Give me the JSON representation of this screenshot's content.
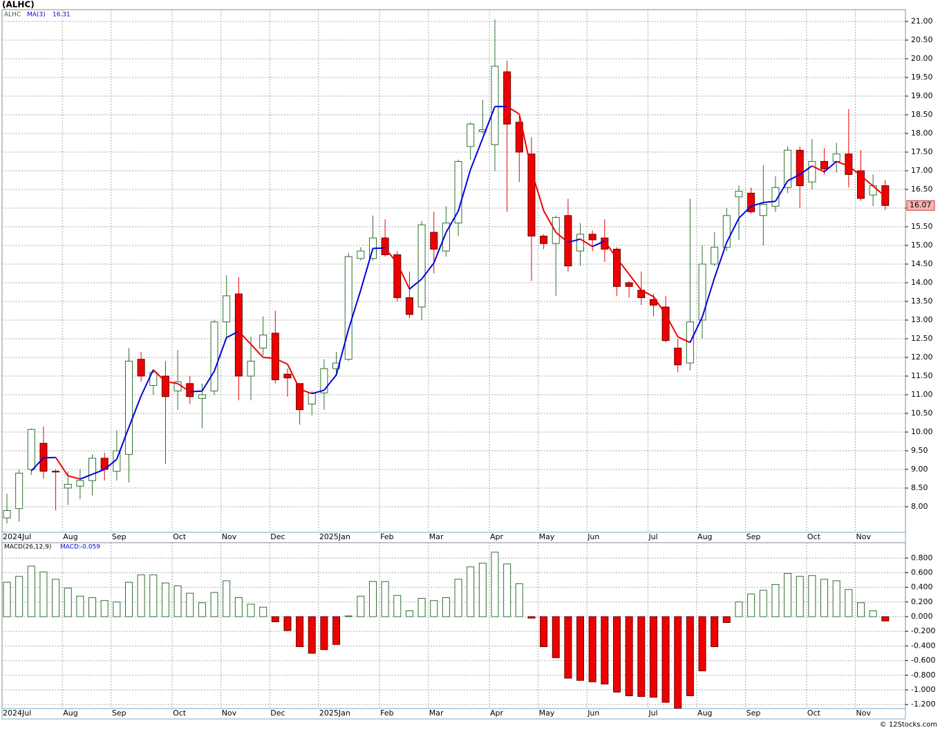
{
  "chart_data": [
    {
      "type": "candlestick",
      "title": "(ALHC)",
      "symbol": "ALHC",
      "categories": [
        "2024Jul",
        null,
        null,
        null,
        null,
        "Aug",
        null,
        null,
        null,
        "Sep",
        null,
        null,
        null,
        null,
        "Oct",
        null,
        null,
        null,
        "Nov",
        null,
        null,
        null,
        "Dec",
        null,
        null,
        null,
        "2025Jan",
        null,
        null,
        null,
        null,
        "Feb",
        null,
        null,
        null,
        "Mar",
        null,
        null,
        null,
        null,
        "Apr",
        null,
        null,
        null,
        "May",
        null,
        null,
        null,
        "Jun",
        null,
        null,
        null,
        null,
        "Jul",
        null,
        null,
        null,
        "Aug",
        null,
        null,
        null,
        "Sep",
        null,
        null,
        null,
        null,
        "Oct",
        null,
        null,
        null,
        "Nov",
        null,
        null
      ],
      "open": [
        7.7,
        7.95,
        9.0,
        9.7,
        8.95,
        8.5,
        8.55,
        8.7,
        9.3,
        8.95,
        9.4,
        11.95,
        11.25,
        11.5,
        11.1,
        11.3,
        10.9,
        11.1,
        12.95,
        13.7,
        11.5,
        12.25,
        12.65,
        11.55,
        11.3,
        10.75,
        11.05,
        11.7,
        11.95,
        14.65,
        14.65,
        15.2,
        14.75,
        13.6,
        13.35,
        15.35,
        14.85,
        15.6,
        17.65,
        18.05,
        17.7,
        19.65,
        18.3,
        17.45,
        15.25,
        15.05,
        15.8,
        14.85,
        15.3,
        15.2,
        14.9,
        14.0,
        13.8,
        13.55,
        13.35,
        12.25,
        11.85,
        13.0,
        14.5,
        14.95,
        16.3,
        16.4,
        15.8,
        16.05,
        16.55,
        17.55,
        16.7,
        17.25,
        17.25,
        17.45,
        17.0,
        16.35,
        16.6
      ],
      "high": [
        8.35,
        9.0,
        10.1,
        10.15,
        9.0,
        8.95,
        9.0,
        9.4,
        9.45,
        10.05,
        12.25,
        12.15,
        11.65,
        11.9,
        12.2,
        11.5,
        11.3,
        13.0,
        14.2,
        14.15,
        12.55,
        13.1,
        13.25,
        11.7,
        11.3,
        11.1,
        11.95,
        12.15,
        14.8,
        14.95,
        15.8,
        15.7,
        14.85,
        14.3,
        15.65,
        15.9,
        16.05,
        17.3,
        18.3,
        18.9,
        21.05,
        19.95,
        18.45,
        17.9,
        15.3,
        15.8,
        16.25,
        15.6,
        15.4,
        15.7,
        14.95,
        14.05,
        14.3,
        13.7,
        13.65,
        12.5,
        16.25,
        15.0,
        15.35,
        16.0,
        16.6,
        16.55,
        17.15,
        16.85,
        17.65,
        17.65,
        17.85,
        17.6,
        17.75,
        18.65,
        17.55,
        16.9,
        16.75
      ],
      "low": [
        7.55,
        7.6,
        8.85,
        8.75,
        7.9,
        8.05,
        8.2,
        8.3,
        8.7,
        8.7,
        8.65,
        11.35,
        11.0,
        9.15,
        10.6,
        10.75,
        10.1,
        11.0,
        12.5,
        10.85,
        10.85,
        12.05,
        11.3,
        10.95,
        10.2,
        10.45,
        10.6,
        11.5,
        11.9,
        14.6,
        14.6,
        14.7,
        13.5,
        13.05,
        13.0,
        14.25,
        14.7,
        15.25,
        17.3,
        18.0,
        17.0,
        15.9,
        16.7,
        14.05,
        14.9,
        13.65,
        14.3,
        14.45,
        14.85,
        14.55,
        13.65,
        13.6,
        13.4,
        13.1,
        12.4,
        11.6,
        11.65,
        12.5,
        14.45,
        14.85,
        15.15,
        15.85,
        15.0,
        15.9,
        16.4,
        16.0,
        16.5,
        16.9,
        16.95,
        16.55,
        16.2,
        16.05,
        15.95
      ],
      "close": [
        7.9,
        8.9,
        10.07,
        8.95,
        8.93,
        8.6,
        8.7,
        9.3,
        9.0,
        9.5,
        11.9,
        11.5,
        11.6,
        10.95,
        11.35,
        10.95,
        11.0,
        12.95,
        13.65,
        11.5,
        11.9,
        12.6,
        11.4,
        11.45,
        10.6,
        11.05,
        11.7,
        11.85,
        14.7,
        14.85,
        15.2,
        14.75,
        13.6,
        13.15,
        15.55,
        14.9,
        15.6,
        17.25,
        18.25,
        18.1,
        19.8,
        18.25,
        17.5,
        15.25,
        15.05,
        15.75,
        14.45,
        15.3,
        15.15,
        14.9,
        13.9,
        13.9,
        13.6,
        13.4,
        12.45,
        11.8,
        12.95,
        14.5,
        14.95,
        15.8,
        16.45,
        15.9,
        16.1,
        16.55,
        17.55,
        16.6,
        17.25,
        17.05,
        17.45,
        16.9,
        16.26,
        16.6,
        16.07
      ],
      "up_color": "#2f6f2f",
      "down_color": "#ee0000",
      "ma": {
        "name": "MA(3)",
        "up_color": "#0000dd",
        "down_color": "#ee0000",
        "values": [
          null,
          null,
          8.96,
          9.31,
          9.32,
          8.83,
          8.74,
          8.87,
          9.0,
          9.27,
          10.13,
          10.97,
          11.67,
          11.35,
          11.3,
          11.08,
          11.1,
          11.63,
          12.53,
          12.7,
          12.35,
          12.0,
          11.97,
          11.82,
          11.15,
          11.03,
          11.12,
          11.53,
          12.75,
          13.8,
          14.92,
          14.93,
          14.52,
          13.83,
          14.1,
          14.53,
          15.35,
          15.92,
          17.03,
          17.87,
          18.72,
          18.72,
          18.52,
          17.0,
          15.93,
          15.35,
          15.08,
          15.17,
          14.97,
          15.12,
          14.65,
          14.23,
          13.8,
          13.63,
          13.15,
          12.55,
          12.4,
          13.08,
          14.13,
          15.08,
          15.73,
          16.05,
          16.15,
          16.18,
          16.73,
          16.9,
          17.13,
          16.97,
          17.25,
          17.13,
          16.87,
          16.59,
          16.31
        ]
      },
      "ylim": [
        7.315,
        21.315
      ],
      "yticks": [
        {
          "value": 8,
          "label": "8.00"
        },
        {
          "value": 8.5,
          "label": "8.50"
        },
        {
          "value": 9,
          "label": "9.00"
        },
        {
          "value": 9.5,
          "label": "9.50"
        },
        {
          "value": 10,
          "label": "10.00"
        },
        {
          "value": 10.5,
          "label": "10.50"
        },
        {
          "value": 11,
          "label": "11.00"
        },
        {
          "value": 11.5,
          "label": "11.50"
        },
        {
          "value": 12,
          "label": "12.00"
        },
        {
          "value": 12.5,
          "label": "12.50"
        },
        {
          "value": 13,
          "label": "13.00"
        },
        {
          "value": 13.5,
          "label": "13.50"
        },
        {
          "value": 14,
          "label": "14.00"
        },
        {
          "value": 14.5,
          "label": "14.50"
        },
        {
          "value": 15,
          "label": "15.00"
        },
        {
          "value": 15.5,
          "label": "15.50"
        },
        {
          "value": 16,
          "label": "16.00"
        },
        {
          "value": 16.5,
          "label": "16.50"
        },
        {
          "value": 17,
          "label": "17.00"
        },
        {
          "value": 17.5,
          "label": "17.50"
        },
        {
          "value": 18,
          "label": "18.00"
        },
        {
          "value": 18.5,
          "label": "18.50"
        },
        {
          "value": 19,
          "label": "19.00"
        },
        {
          "value": 19.5,
          "label": "19.50"
        },
        {
          "value": 20,
          "label": "20.00"
        },
        {
          "value": 20.5,
          "label": "20.50"
        },
        {
          "value": 21,
          "label": "21.00"
        }
      ],
      "grid": true
    },
    {
      "type": "bar",
      "name": "MACD(26,12,9)",
      "value_prefix": "MACD:",
      "categories": [
        "2024Jul",
        null,
        null,
        null,
        null,
        "Aug",
        null,
        null,
        null,
        "Sep",
        null,
        null,
        null,
        null,
        "Oct",
        null,
        null,
        null,
        "Nov",
        null,
        null,
        null,
        "Dec",
        null,
        null,
        null,
        "2025Jan",
        null,
        null,
        null,
        null,
        "Feb",
        null,
        null,
        null,
        "Mar",
        null,
        null,
        null,
        null,
        "Apr",
        null,
        null,
        null,
        "May",
        null,
        null,
        null,
        "Jun",
        null,
        null,
        null,
        null,
        "Jul",
        null,
        null,
        null,
        "Aug",
        null,
        null,
        null,
        "Sep",
        null,
        null,
        null,
        null,
        "Oct",
        null,
        null,
        null,
        "Nov",
        null,
        null
      ],
      "values": [
        0.47,
        0.55,
        0.69,
        0.61,
        0.51,
        0.39,
        0.28,
        0.26,
        0.22,
        0.2,
        0.47,
        0.57,
        0.57,
        0.46,
        0.42,
        0.32,
        0.19,
        0.33,
        0.49,
        0.26,
        0.17,
        0.13,
        -0.07,
        -0.19,
        -0.41,
        -0.5,
        -0.45,
        -0.38,
        0.01,
        0.28,
        0.48,
        0.48,
        0.29,
        0.08,
        0.25,
        0.22,
        0.26,
        0.51,
        0.68,
        0.73,
        0.88,
        0.72,
        0.45,
        -0.02,
        -0.41,
        -0.56,
        -0.84,
        -0.87,
        -0.89,
        -0.92,
        -1.03,
        -1.08,
        -1.09,
        -1.1,
        -1.17,
        -1.25,
        -1.08,
        -0.74,
        -0.41,
        -0.08,
        0.2,
        0.31,
        0.36,
        0.44,
        0.59,
        0.55,
        0.56,
        0.51,
        0.49,
        0.37,
        0.19,
        0.08,
        -0.059
      ],
      "up_color": "#2f6f2f",
      "down_color": "#ee0000",
      "ylim": [
        -1.255,
        1.01
      ],
      "yticks": [
        {
          "value": 0.8,
          "label": "0.800"
        },
        {
          "value": 0.6,
          "label": "0.600"
        },
        {
          "value": 0.4,
          "label": "0.400"
        },
        {
          "value": 0.2,
          "label": "0.200"
        },
        {
          "value": 0,
          "label": "0.000"
        },
        {
          "value": -0.2,
          "label": "-0.200"
        },
        {
          "value": -0.4,
          "label": "-0.400"
        },
        {
          "value": -0.6,
          "label": "-0.600"
        },
        {
          "value": -0.8,
          "label": "-0.800"
        },
        {
          "value": -1.0,
          "label": "-1.000"
        },
        {
          "value": -1.2,
          "label": "-1.200"
        }
      ],
      "grid": true
    }
  ],
  "credit": "© 12Stocks.com"
}
